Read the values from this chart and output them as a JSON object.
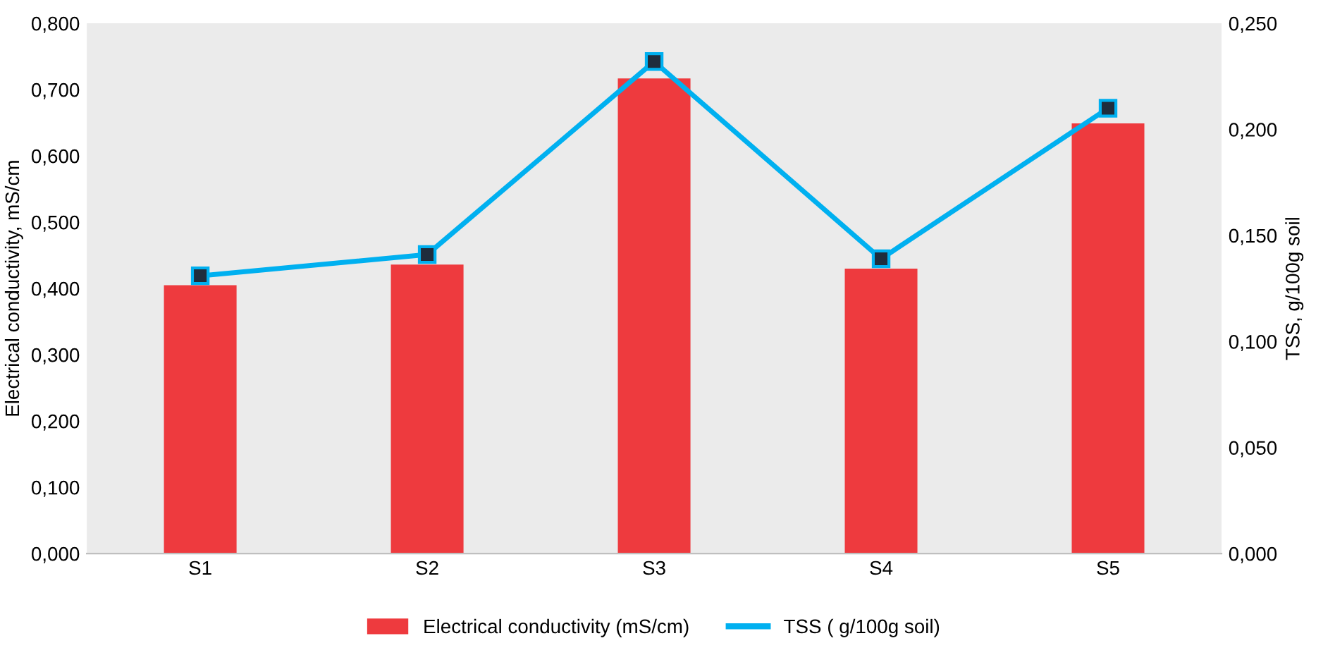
{
  "chart_data": {
    "type": "bar",
    "categories": [
      "S1",
      "S2",
      "S3",
      "S4",
      "S5"
    ],
    "ylabel": "Electrical conductivity, mS/cm",
    "y2label": "TSS, g/100g soil",
    "series": [
      {
        "name": "Electrical conductivity (mS/cm)",
        "color": "#ee3a3e",
        "values": [
          0.405,
          0.436,
          0.717,
          0.43,
          0.649
        ]
      },
      {
        "name": "TSS ( g/100g soil)",
        "type": "line",
        "axis": "y2",
        "color": "#00b0f0",
        "marker": "square",
        "values": [
          0.131,
          0.141,
          0.232,
          0.139,
          0.21
        ]
      }
    ],
    "ylim": [
      0,
      0.8
    ],
    "yticks": [
      {
        "value": 0,
        "label": "0,000"
      },
      {
        "value": 0.1,
        "label": "0,100"
      },
      {
        "value": 0.2,
        "label": "0,200"
      },
      {
        "value": 0.3,
        "label": "0,300"
      },
      {
        "value": 0.4,
        "label": "0,400"
      },
      {
        "value": 0.5,
        "label": "0,500"
      },
      {
        "value": 0.6,
        "label": "0,600"
      },
      {
        "value": 0.7,
        "label": "0,700"
      },
      {
        "value": 0.8,
        "label": "0,800"
      }
    ],
    "y2lim": [
      0,
      0.25
    ],
    "y2ticks": [
      {
        "value": 0,
        "label": "0,000"
      },
      {
        "value": 0.05,
        "label": "0,050"
      },
      {
        "value": 0.1,
        "label": "0,100"
      },
      {
        "value": 0.15,
        "label": "0,150"
      },
      {
        "value": 0.2,
        "label": "0,200"
      },
      {
        "value": 0.25,
        "label": "0,250"
      }
    ],
    "legend": "bottom",
    "grid": false
  }
}
